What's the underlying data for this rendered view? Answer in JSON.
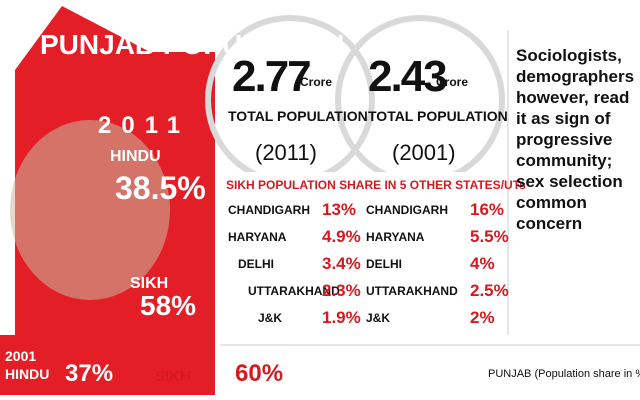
{
  "title": "PUNJAB POPULATION",
  "year_2011": "2011",
  "hindu_2011": {
    "label": "HINDU",
    "value": "38.5%"
  },
  "sikh_2011": {
    "label": "SIKH",
    "value": "58%"
  },
  "year_2001": "2001",
  "hindu_2001": {
    "label": "HINDU",
    "value": "37%"
  },
  "sikh_2001": {
    "label": "SIKH",
    "value": "60%"
  },
  "totals": [
    {
      "value": "2.77",
      "unit": "Crore",
      "label": "TOTAL POPULATION",
      "year": "(2011)"
    },
    {
      "value": "2.43",
      "unit": "Crore",
      "label": "TOTAL POPULATION",
      "year": "(2001)"
    }
  ],
  "table": {
    "title": "SIKH POPULATION SHARE IN 5 OTHER STATES/UTs",
    "rows": [
      [
        "CHANDIGARH",
        "13%",
        "CHANDIGARH",
        "16%"
      ],
      [
        "HARYANA",
        "4.9%",
        "HARYANA",
        "5.5%"
      ],
      [
        "DELHI",
        "3.4%",
        "DELHI",
        "4%"
      ],
      [
        "UTTARAKHAND",
        "2.3%",
        "UTTARAKHAND",
        "2.5%"
      ],
      [
        "J&K",
        "1.9%",
        "J&K",
        "2%"
      ]
    ]
  },
  "note": "Sociologists, demographers however, read it as sign of progressive community; sex selection common concern",
  "footer": "PUNJAB (Population share in %)"
}
